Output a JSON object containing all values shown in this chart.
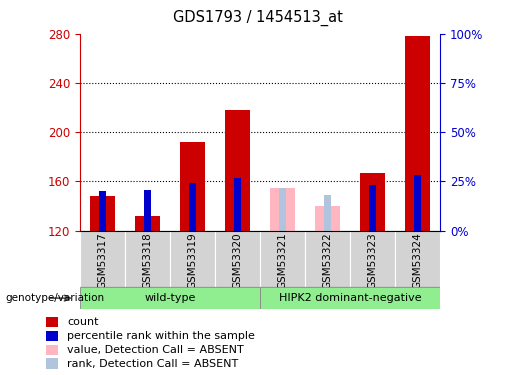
{
  "title": "GDS1793 / 1454513_at",
  "samples": [
    "GSM53317",
    "GSM53318",
    "GSM53319",
    "GSM53320",
    "GSM53321",
    "GSM53322",
    "GSM53323",
    "GSM53324"
  ],
  "ymin": 120,
  "ymax": 280,
  "yticks": [
    120,
    160,
    200,
    240,
    280
  ],
  "right_yticks": [
    0,
    25,
    50,
    75,
    100
  ],
  "right_ytick_vals": [
    120,
    160,
    200,
    240,
    280
  ],
  "count_values": [
    148,
    132,
    192,
    218,
    null,
    null,
    167,
    278
  ],
  "rank_values": [
    152,
    153,
    159,
    163,
    null,
    null,
    157,
    165
  ],
  "absent_value_values": [
    null,
    null,
    null,
    null,
    155,
    140,
    null,
    null
  ],
  "absent_rank_values": [
    null,
    null,
    null,
    null,
    155,
    149,
    null,
    null
  ],
  "groups": [
    {
      "label": "wild-type",
      "start": 0,
      "end": 4,
      "color": "#90ee90"
    },
    {
      "label": "HIPK2 dominant-negative",
      "start": 4,
      "end": 8,
      "color": "#90ee90"
    }
  ],
  "count_color": "#cc0000",
  "rank_color": "#0000cc",
  "absent_value_color": "#ffb6c1",
  "absent_rank_color": "#b0c4de",
  "legend_items": [
    {
      "label": "count",
      "color": "#cc0000"
    },
    {
      "label": "percentile rank within the sample",
      "color": "#0000cc"
    },
    {
      "label": "value, Detection Call = ABSENT",
      "color": "#ffb6c1"
    },
    {
      "label": "rank, Detection Call = ABSENT",
      "color": "#b0c4de"
    }
  ],
  "genotype_label": "genotype/variation",
  "left_axis_color": "#cc0000",
  "right_axis_color": "#0000cc",
  "cell_bg": "#d3d3d3",
  "green_color": "#90ee90"
}
